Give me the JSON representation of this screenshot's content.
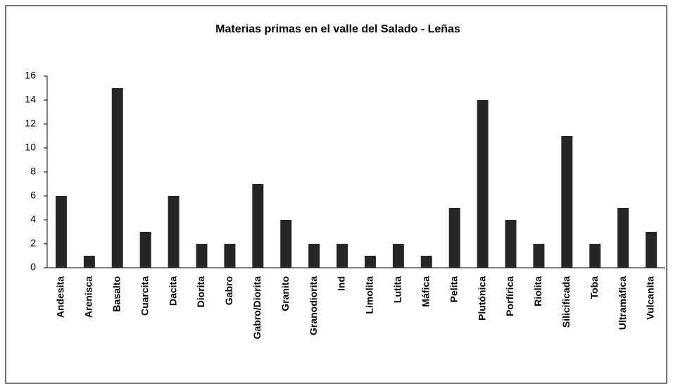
{
  "chart_data": {
    "type": "bar",
    "title": "Materias primas en el  valle del Salado - Leñas",
    "categories": [
      "Andesita",
      "Arenisca",
      "Basalto",
      "Cuarcita",
      "Dacita",
      "Diorita",
      "Gabro",
      "Gabro/Diorita",
      "Granito",
      "Granodiorita",
      "Ind",
      "Limolita",
      "Lutita",
      "Máfica",
      "Pelita",
      "Plutónica",
      "Porfírica",
      "Riolita",
      "Silicificada",
      "Toba",
      "Ultramáfica",
      "Vulcanita"
    ],
    "values": [
      6,
      1,
      15,
      3,
      6,
      2,
      2,
      7,
      4,
      2,
      2,
      1,
      2,
      1,
      5,
      14,
      4,
      2,
      11,
      2,
      5,
      3
    ],
    "color": "#262626",
    "ylim": [
      0,
      16
    ],
    "yticks": [
      0,
      2,
      4,
      6,
      8,
      10,
      12,
      14,
      16
    ],
    "grid": false
  }
}
